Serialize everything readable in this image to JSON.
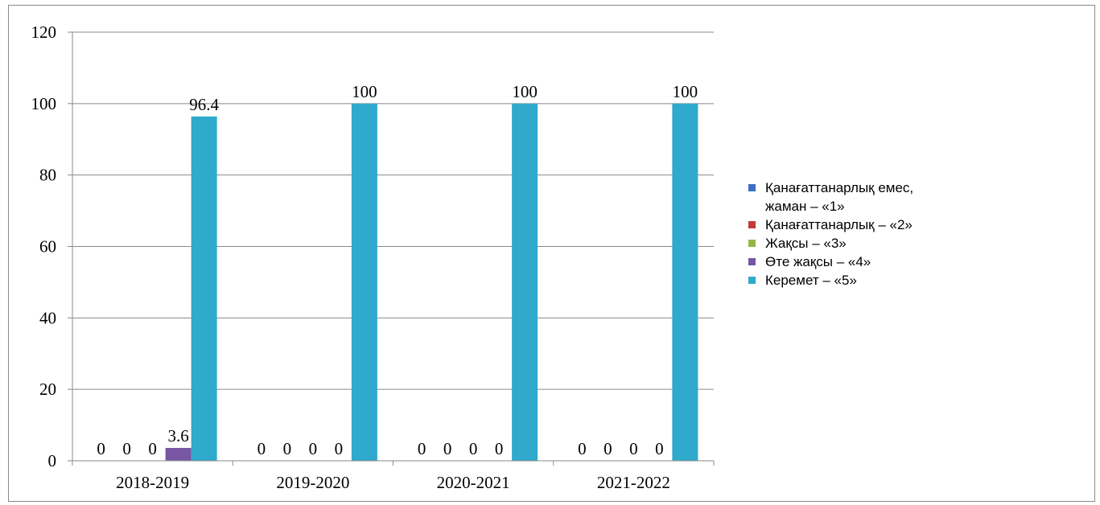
{
  "chart_data": {
    "type": "bar",
    "categories": [
      "2018-2019",
      "2019-2020",
      "2020-2021",
      "2021-2022"
    ],
    "series": [
      {
        "name": "Қанағаттанарлық емес, жаман – «1»",
        "color": "#3e6fc2",
        "values": [
          0,
          0,
          0,
          0
        ]
      },
      {
        "name": "Қанағаттанарлық – «2»",
        "color": "#c03a36",
        "values": [
          0,
          0,
          0,
          0
        ]
      },
      {
        "name": "Жақсы – «3»",
        "color": "#93b847",
        "values": [
          0,
          0,
          0,
          0
        ]
      },
      {
        "name": "Өте жақсы – «4»",
        "color": "#7856a3",
        "values": [
          3.6,
          0,
          0,
          0
        ]
      },
      {
        "name": "Керемет – «5»",
        "color": "#2fa9cc",
        "values": [
          96.4,
          100,
          100,
          100
        ]
      }
    ],
    "ylim": [
      0,
      120
    ],
    "yticks": [
      0,
      20,
      40,
      60,
      80,
      100,
      120
    ],
    "grid": true,
    "legend": "right"
  }
}
